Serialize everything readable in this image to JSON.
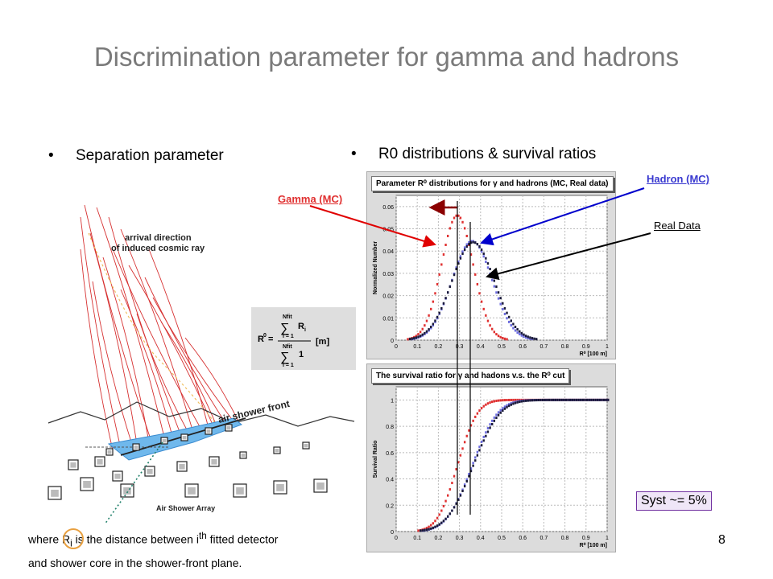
{
  "title": "Discrimination parameter for gamma and hadrons",
  "bullets": {
    "left": "Separation parameter",
    "right": "R0 distributions & survival ratios"
  },
  "labels": {
    "gamma": "Gamma (MC)",
    "hadron": "Hadron (MC)",
    "real": "Real Data",
    "syst": "Syst ~= 5%",
    "page": "8"
  },
  "footnote": {
    "l1a": "where R",
    "l1sub": "i",
    "l1b": " is the distance between i",
    "l1sup": "th",
    "l1c": " fitted detector",
    "l2": "and shower core in the shower-front plane."
  },
  "diagram": {
    "arrival": "arrival direction\nof induced cosmic ray",
    "front": "air shower front",
    "array": "Air Shower Array",
    "formula": {
      "lhs": "R",
      "lhs_sup": "0",
      "num_top": "Nfit",
      "num_bot": "i = 1",
      "den_top": "Nfit",
      "den_bot": "i = 1",
      "ri": "R",
      "ri_sub": "i",
      "one": "1",
      "unit": "[m]"
    }
  },
  "colors": {
    "gamma": "#e03030",
    "hadron": "#6b6bdf",
    "real": "#1a1a3a",
    "syst_border": "#7030a0"
  },
  "chart_data": [
    {
      "type": "scatter",
      "title": "Parameter R⁰ distributions for γ and hadrons (MC, Real data)",
      "xlabel": "R⁰ [100 m]",
      "ylabel": "Normalized Number",
      "xlim": [
        0,
        1
      ],
      "ylim": [
        0,
        0.065
      ],
      "xticks": [
        "0",
        "0.1",
        "0.2",
        "0.3",
        "0.4",
        "0.5",
        "0.6",
        "0.7",
        "0.8",
        "0.9",
        "1"
      ],
      "yticks": [
        "0",
        "0.01",
        "0.02",
        "0.03",
        "0.04",
        "0.05",
        "0.06"
      ],
      "grid": true,
      "series": [
        {
          "name": "Gamma (MC)",
          "distribution": {
            "mean": 0.29,
            "sigma": 0.075,
            "peak": 0.056
          }
        },
        {
          "name": "Hadron (MC)",
          "distribution": {
            "mean": 0.36,
            "sigma": 0.095,
            "peak": 0.0445
          }
        },
        {
          "name": "Real Data",
          "distribution": {
            "mean": 0.365,
            "sigma": 0.1,
            "peak": 0.044
          }
        }
      ]
    },
    {
      "type": "scatter",
      "title": "The survival ratio for γ and hadons v.s. the R⁰ cut",
      "xlabel": "R⁰ [100 m]",
      "ylabel": "Survival Ratio",
      "xlim": [
        0,
        1
      ],
      "ylim": [
        0,
        1.1
      ],
      "xticks": [
        "0",
        "0.1",
        "0.2",
        "0.3",
        "0.4",
        "0.5",
        "0.6",
        "0.7",
        "0.8",
        "0.9",
        "1"
      ],
      "yticks": [
        "0",
        "0.2",
        "0.4",
        "0.6",
        "0.8",
        "1"
      ],
      "grid": true,
      "series": [
        {
          "name": "Gamma (MC)",
          "distribution": {
            "mean": 0.29,
            "sigma": 0.075
          }
        },
        {
          "name": "Hadron (MC)",
          "distribution": {
            "mean": 0.36,
            "sigma": 0.095
          }
        },
        {
          "name": "Real Data",
          "distribution": {
            "mean": 0.365,
            "sigma": 0.1
          }
        }
      ]
    }
  ]
}
